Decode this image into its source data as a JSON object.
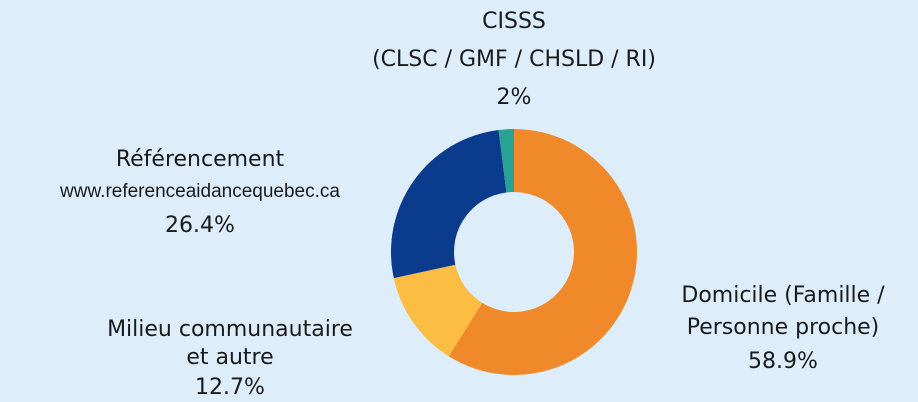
{
  "chart_data": {
    "type": "donut",
    "categories": [
      [
        "Domicile (Famille /",
        "Personne proche)"
      ],
      [
        "Milieu communautaire",
        "et autre"
      ],
      [
        "Référencement",
        "www.referenceaidancequebec.ca"
      ],
      [
        "CISSS",
        "(CLSC / GMF / CHSLD / RI)"
      ]
    ],
    "values": [
      58.9,
      12.7,
      26.4,
      2
    ],
    "value_labels": [
      "58.9%",
      "12.7%",
      "26.4%",
      "2%"
    ],
    "colors": [
      "#f0892a",
      "#fdbd43",
      "#0b3b8c",
      "#27a396"
    ]
  }
}
